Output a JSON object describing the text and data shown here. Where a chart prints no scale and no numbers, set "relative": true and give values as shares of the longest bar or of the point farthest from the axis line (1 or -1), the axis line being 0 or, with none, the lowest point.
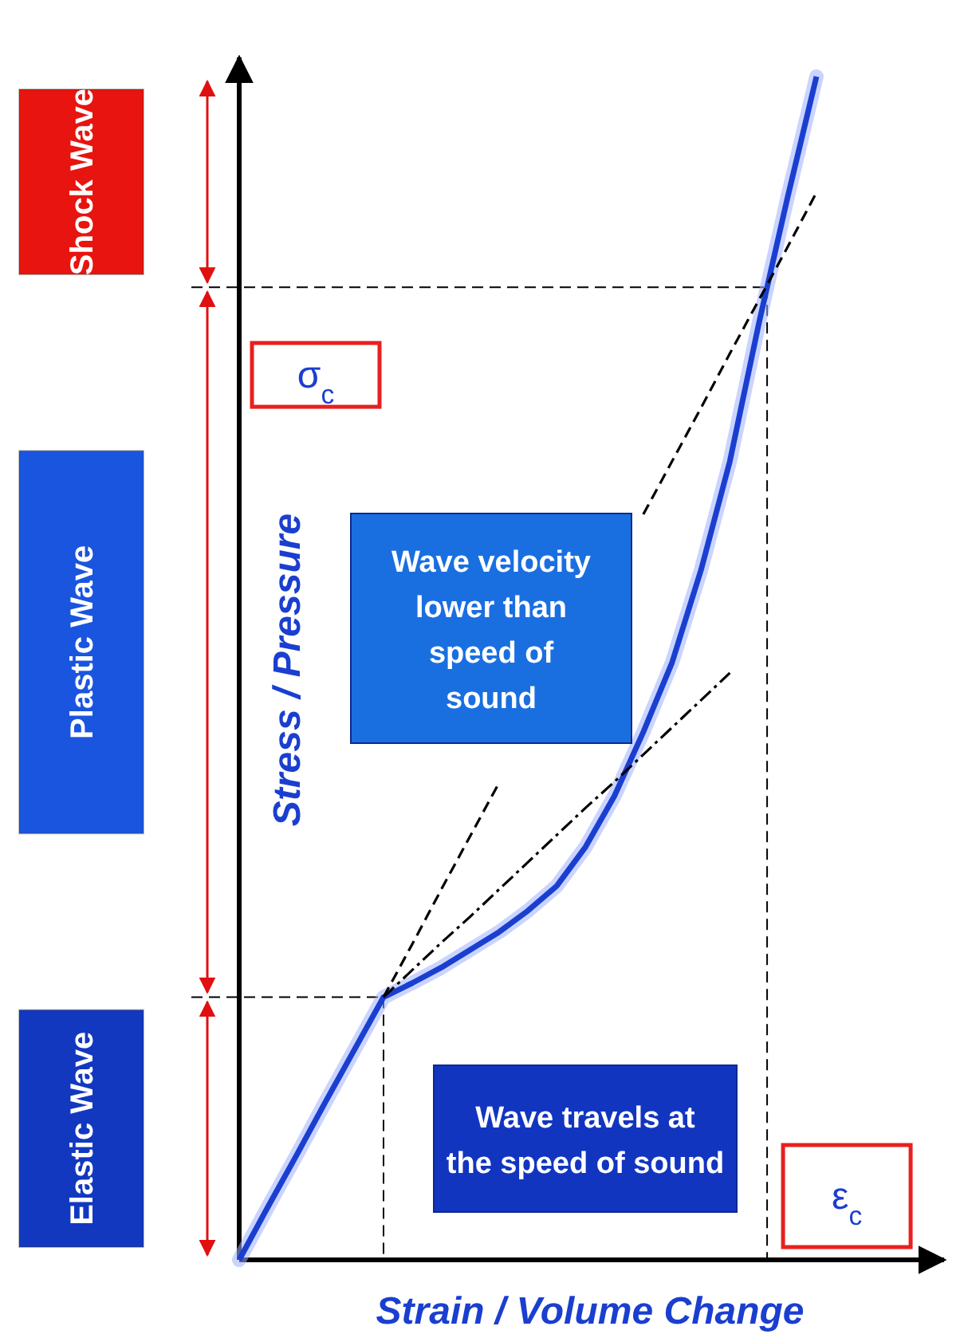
{
  "chart_data": {
    "type": "line",
    "relative": true,
    "xlabel": "Strain / Volume Change",
    "ylabel": "Stress / Pressure",
    "categories": [
      null,
      null,
      null,
      null,
      null,
      null,
      null,
      null,
      null,
      null,
      null,
      null,
      null,
      null,
      null,
      null,
      null,
      null,
      null,
      null,
      null
    ],
    "series": [
      {
        "color": "#1a3fd0",
        "line_style": "solid",
        "values": [
          0,
          0.045,
          0.089,
          0.134,
          0.178,
          0.222,
          0.234,
          0.247,
          0.262,
          0.277,
          0.295,
          0.316,
          0.349,
          0.392,
          0.446,
          0.505,
          0.583,
          0.675,
          0.791,
          0.898,
          1
        ]
      },
      {
        "color": "#000000",
        "line_style": "dashed",
        "values": [
          null,
          null,
          null,
          null,
          null,
          0.222,
          0.267,
          0.313,
          0.358,
          0.403,
          null,
          null,
          null,
          null,
          0.63,
          0.675,
          0.72,
          0.766,
          0.811,
          0.856,
          0.902
        ]
      },
      {
        "color": "#000000",
        "line_style": "dashdot",
        "values": [
          null,
          null,
          null,
          null,
          null,
          0.222,
          0.245,
          0.268,
          0.29,
          0.313,
          0.336,
          0.359,
          0.382,
          0.404,
          0.427,
          0.45,
          0.473,
          0.496,
          null,
          null,
          null
        ]
      }
    ],
    "ref_lines": [
      {
        "axis": "y",
        "value": 0.822,
        "label": "σ$_{c}$",
        "line_style": "dashed",
        "color": "#000000"
      },
      {
        "axis": "y",
        "value": 0.222,
        "line_style": "dashed",
        "color": "#000000"
      }
    ],
    "annotations": [
      "Wave velocity lower than speed of sound",
      "Wave travels at the speed of sound",
      "ε$_{c}$",
      "Shock Wave",
      "Plastic Wave",
      "Elastic Wave"
    ]
  }
}
